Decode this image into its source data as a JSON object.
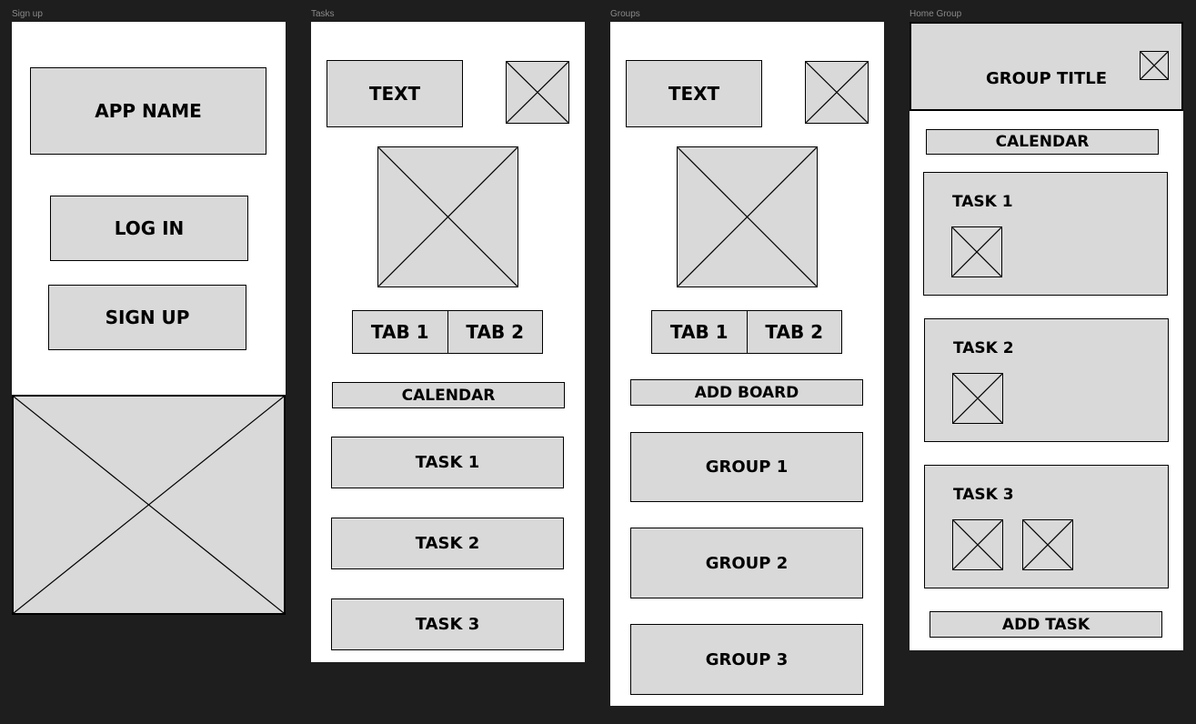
{
  "frames": {
    "signup": {
      "label": "Sign up",
      "app_name": "APP NAME",
      "login_label": "LOG IN",
      "signup_label": "SIGN UP"
    },
    "tasks": {
      "label": "Tasks",
      "text_label": "TEXT",
      "tab1": "TAB 1",
      "tab2": "TAB 2",
      "calendar": "CALENDAR",
      "task1": "TASK 1",
      "task2": "TASK 2",
      "task3": "TASK 3"
    },
    "groups": {
      "label": "Groups",
      "text_label": "TEXT",
      "tab1": "TAB 1",
      "tab2": "TAB 2",
      "add_board": "ADD BOARD",
      "group1": "GROUP 1",
      "group2": "GROUP 2",
      "group3": "GROUP 3"
    },
    "home_group": {
      "label": "Home Group",
      "group_title": "GROUP TITLE",
      "calendar": "CALENDAR",
      "task1": "TASK 1",
      "task2": "TASK 2",
      "task3": "TASK 3",
      "add_task": "ADD TASK"
    }
  },
  "colors": {
    "canvas": "#1e1e1e",
    "frame_bg": "#ffffff",
    "box_fill": "#d9d9d9",
    "stroke": "#000000",
    "label": "#8a8a8a"
  },
  "icons": {
    "placeholder": "image-placeholder-icon"
  }
}
